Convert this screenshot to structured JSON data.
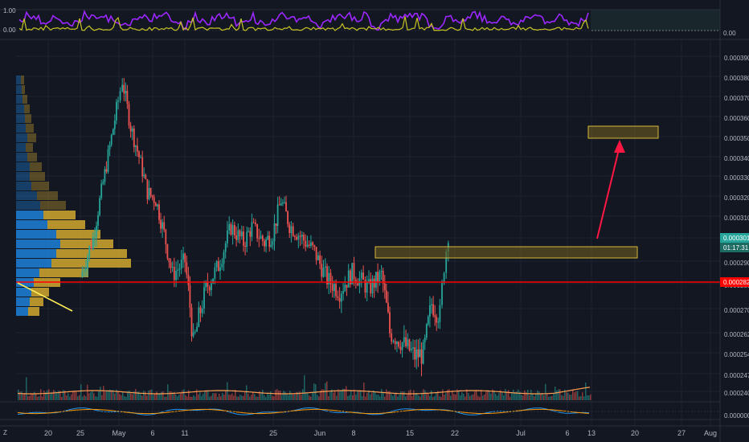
{
  "colors": {
    "background": "#131722",
    "grid": "#1f2331",
    "up": "#26a69a",
    "down": "#ef5350",
    "support_line": "#ff0000",
    "arrow": "#ff1744",
    "zone_fill": "#6b5a1e",
    "zone_border": "#d4b93a",
    "vp_blue": "#1e88e5",
    "vp_gold": "#d4a82f",
    "osc_purple": "#9c27ff",
    "osc_yellow": "#c7c524",
    "ma_orange": "#ff9f50",
    "price_tag": "#26a69a"
  },
  "chart_data": [
    {
      "type": "candlestick",
      "pane": "main",
      "ylim": [
        0.000233,
        0.000396
      ],
      "price_axis_labels": [
        "0.0003900",
        "0.0003800",
        "0.0003700",
        "0.0003600",
        "0.0003500",
        "0.0003400",
        "0.0003300",
        "0.0003200",
        "0.0003100",
        "0.0003000",
        "0.0002900",
        "0.0002800",
        "0.0002700",
        "0.0002620",
        "0.0002540",
        "0.0002470",
        "0.0002400",
        "0.0000000"
      ],
      "x_ticks": [
        "20",
        "25",
        "May",
        "6",
        "11",
        "25",
        "Jun",
        "8",
        "15",
        "22",
        "Jul",
        "6",
        "13",
        "20",
        "27",
        "Aug"
      ],
      "last_price": "0.0003018",
      "countdown": "01:17:31",
      "support_price": "0.0002827",
      "support_level": 0.0002827,
      "resistance_zone": [
        0.0002915,
        0.0002955
      ],
      "target_zone": [
        0.000348,
        0.000353
      ],
      "close_path": [
        {
          "x": "Apr 16",
          "y": 0.000283
        },
        {
          "x": "Apr 19",
          "y": 0.0003
        },
        {
          "x": "Apr 21",
          "y": 0.000322
        },
        {
          "x": "Apr 23",
          "y": 0.000345
        },
        {
          "x": "Apr 25",
          "y": 0.000368
        },
        {
          "x": "Apr 26",
          "y": 0.000378
        },
        {
          "x": "Apr 28",
          "y": 0.000355
        },
        {
          "x": "Apr 30",
          "y": 0.00034
        },
        {
          "x": "May 2",
          "y": 0.000322
        },
        {
          "x": "May 4",
          "y": 0.000318
        },
        {
          "x": "May 6",
          "y": 0.000302
        },
        {
          "x": "May 8",
          "y": 0.000284
        },
        {
          "x": "May 11",
          "y": 0.00029
        },
        {
          "x": "May 13",
          "y": 0.000258
        },
        {
          "x": "May 16",
          "y": 0.000278
        },
        {
          "x": "May 19",
          "y": 0.000288
        },
        {
          "x": "May 22",
          "y": 0.000305
        },
        {
          "x": "May 25",
          "y": 0.000298
        },
        {
          "x": "May 27",
          "y": 0.000305
        },
        {
          "x": "May 30",
          "y": 0.000298
        },
        {
          "x": "Jun 1",
          "y": 0.000302
        },
        {
          "x": "Jun 3",
          "y": 0.000318
        },
        {
          "x": "Jun 5",
          "y": 0.000306
        },
        {
          "x": "Jun 8",
          "y": 0.0003
        },
        {
          "x": "Jun 11",
          "y": 0.000294
        },
        {
          "x": "Jun 14",
          "y": 0.000282
        },
        {
          "x": "Jun 17",
          "y": 0.000277
        },
        {
          "x": "Jun 20",
          "y": 0.000285
        },
        {
          "x": "Jun 24",
          "y": 0.000278
        },
        {
          "x": "Jun 27",
          "y": 0.000284
        },
        {
          "x": "Jun 29",
          "y": 0.000262
        },
        {
          "x": "Jul 2",
          "y": 0.000258
        },
        {
          "x": "Jul 5",
          "y": 0.000253
        },
        {
          "x": "Jul 7",
          "y": 0.000254
        },
        {
          "x": "Jul 9",
          "y": 0.000272
        },
        {
          "x": "Jul 11",
          "y": 0.000268
        },
        {
          "x": "Jul 12",
          "y": 0.000288
        },
        {
          "x": "Jul 13",
          "y": 0.000302
        }
      ]
    },
    {
      "type": "line",
      "pane": "top-oscillator",
      "y_axis_labels": [
        "1.00",
        "0.00",
        "0.00"
      ],
      "series": [
        {
          "color": "#9c27ff"
        },
        {
          "color": "#c7c524"
        }
      ]
    },
    {
      "type": "bar",
      "pane": "volume",
      "series": [
        {
          "color": "#ff9f50"
        }
      ]
    }
  ]
}
